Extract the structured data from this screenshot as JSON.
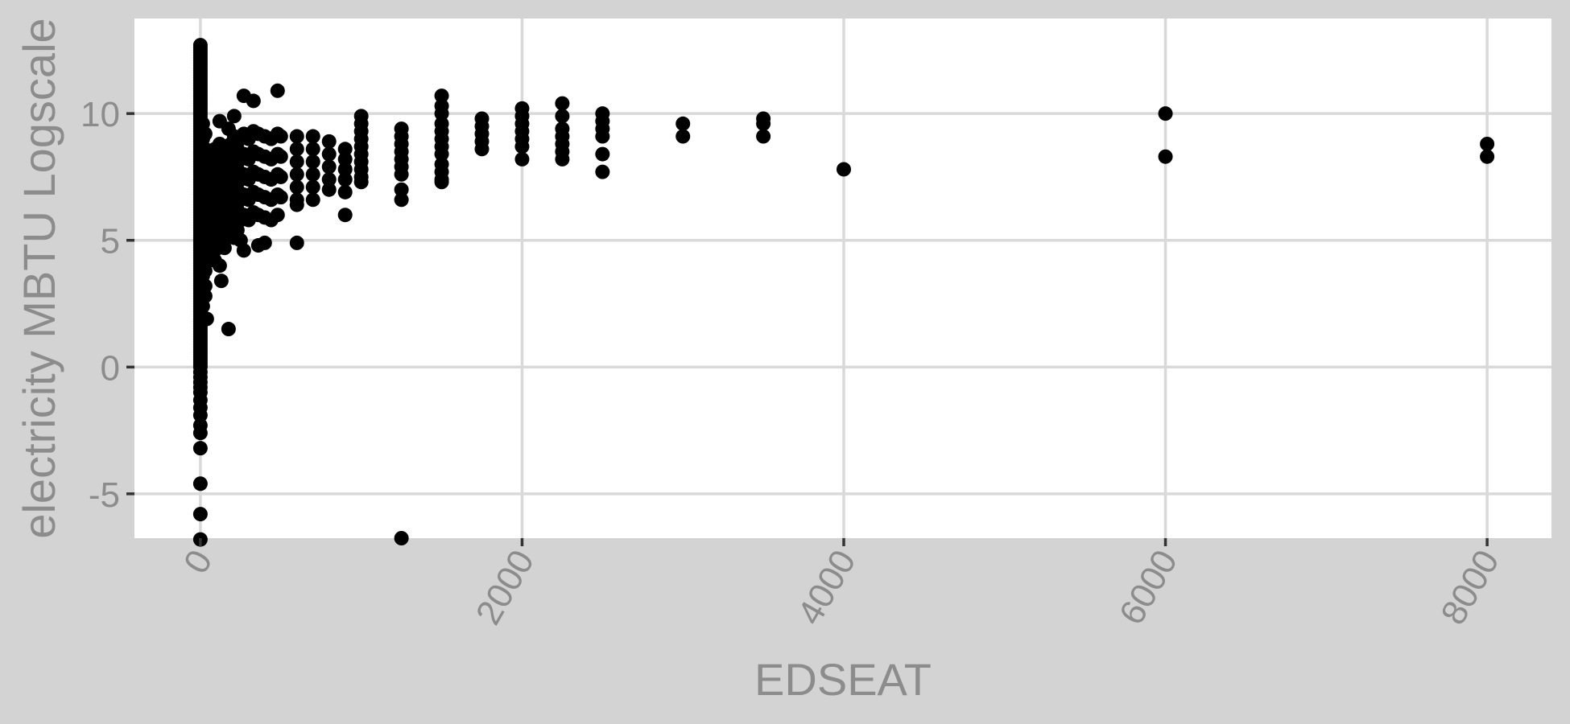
{
  "chart_data": {
    "type": "scatter",
    "title": "",
    "xlabel": "EDSEAT",
    "ylabel": "electricity MBTU Logscale",
    "xlim": [
      -410,
      8400
    ],
    "ylim": [
      -6.75,
      13.75
    ],
    "x_ticks": [
      0,
      2000,
      4000,
      6000,
      8000
    ],
    "y_ticks": [
      -5,
      0,
      5,
      10
    ],
    "grid": true,
    "legend": "none",
    "colors": {
      "panel": "#ffffff",
      "background": "#d3d3d3",
      "grid": "#d9d9d9",
      "points": "#000000",
      "text": "#8c8c8c"
    },
    "points": [
      [
        0,
        12.7
      ],
      [
        0,
        12.6
      ],
      [
        0,
        12.5
      ],
      [
        0,
        12.4
      ],
      [
        0,
        12.3
      ],
      [
        0,
        12.2
      ],
      [
        0,
        12.1
      ],
      [
        0,
        12.0
      ],
      [
        0,
        11.9
      ],
      [
        0,
        11.8
      ],
      [
        0,
        11.7
      ],
      [
        0,
        11.6
      ],
      [
        0,
        11.5
      ],
      [
        0,
        11.4
      ],
      [
        0,
        11.3
      ],
      [
        0,
        11.2
      ],
      [
        0,
        11.1
      ],
      [
        0,
        11.0
      ],
      [
        0,
        10.9
      ],
      [
        0,
        10.8
      ],
      [
        0,
        10.7
      ],
      [
        0,
        10.6
      ],
      [
        0,
        10.5
      ],
      [
        0,
        10.4
      ],
      [
        0,
        10.3
      ],
      [
        0,
        10.2
      ],
      [
        0,
        10.1
      ],
      [
        0,
        10.0
      ],
      [
        0,
        9.9
      ],
      [
        0,
        9.8
      ],
      [
        0,
        9.7
      ],
      [
        0,
        9.6
      ],
      [
        0,
        9.5
      ],
      [
        0,
        9.4
      ],
      [
        0,
        9.3
      ],
      [
        0,
        9.2
      ],
      [
        0,
        9.1
      ],
      [
        0,
        9.0
      ],
      [
        0,
        8.9
      ],
      [
        0,
        8.8
      ],
      [
        0,
        8.7
      ],
      [
        0,
        8.6
      ],
      [
        0,
        8.5
      ],
      [
        0,
        8.4
      ],
      [
        0,
        8.3
      ],
      [
        0,
        8.2
      ],
      [
        0,
        8.1
      ],
      [
        0,
        8.0
      ],
      [
        0,
        7.9
      ],
      [
        0,
        7.8
      ],
      [
        0,
        7.7
      ],
      [
        0,
        7.6
      ],
      [
        0,
        7.5
      ],
      [
        0,
        7.4
      ],
      [
        0,
        7.3
      ],
      [
        0,
        7.2
      ],
      [
        0,
        7.1
      ],
      [
        0,
        7.0
      ],
      [
        0,
        6.9
      ],
      [
        0,
        6.8
      ],
      [
        0,
        6.7
      ],
      [
        0,
        6.6
      ],
      [
        0,
        6.5
      ],
      [
        0,
        6.4
      ],
      [
        0,
        6.3
      ],
      [
        0,
        6.2
      ],
      [
        0,
        6.1
      ],
      [
        0,
        6.0
      ],
      [
        0,
        5.9
      ],
      [
        0,
        5.8
      ],
      [
        0,
        5.7
      ],
      [
        0,
        5.6
      ],
      [
        0,
        5.5
      ],
      [
        0,
        5.4
      ],
      [
        0,
        5.3
      ],
      [
        0,
        5.2
      ],
      [
        0,
        5.1
      ],
      [
        0,
        5.0
      ],
      [
        0,
        4.9
      ],
      [
        0,
        4.8
      ],
      [
        0,
        4.7
      ],
      [
        0,
        4.6
      ],
      [
        0,
        4.5
      ],
      [
        0,
        4.4
      ],
      [
        0,
        4.3
      ],
      [
        0,
        4.2
      ],
      [
        0,
        4.1
      ],
      [
        0,
        4.0
      ],
      [
        0,
        3.9
      ],
      [
        0,
        3.8
      ],
      [
        0,
        3.7
      ],
      [
        0,
        3.6
      ],
      [
        0,
        3.5
      ],
      [
        0,
        3.4
      ],
      [
        0,
        3.3
      ],
      [
        0,
        3.2
      ],
      [
        0,
        3.1
      ],
      [
        0,
        3.0
      ],
      [
        0,
        2.9
      ],
      [
        0,
        2.8
      ],
      [
        0,
        2.7
      ],
      [
        0,
        2.6
      ],
      [
        0,
        2.5
      ],
      [
        0,
        2.4
      ],
      [
        0,
        2.3
      ],
      [
        0,
        2.2
      ],
      [
        0,
        2.1
      ],
      [
        0,
        2.0
      ],
      [
        0,
        1.9
      ],
      [
        0,
        1.8
      ],
      [
        0,
        1.7
      ],
      [
        0,
        1.6
      ],
      [
        0,
        1.5
      ],
      [
        0,
        1.4
      ],
      [
        0,
        1.3
      ],
      [
        0,
        1.2
      ],
      [
        0,
        1.1
      ],
      [
        0,
        1.0
      ],
      [
        0,
        0.9
      ],
      [
        0,
        0.8
      ],
      [
        0,
        0.7
      ],
      [
        0,
        0.6
      ],
      [
        0,
        0.5
      ],
      [
        0,
        0.4
      ],
      [
        0,
        0.3
      ],
      [
        0,
        0.2
      ],
      [
        0,
        0.1
      ],
      [
        0,
        0.0
      ],
      [
        0,
        -0.2
      ],
      [
        0,
        -0.4
      ],
      [
        0,
        -0.6
      ],
      [
        0,
        -0.8
      ],
      [
        0,
        -1.0
      ],
      [
        0,
        -1.3
      ],
      [
        0,
        -1.6
      ],
      [
        0,
        -1.9
      ],
      [
        0,
        -2.3
      ],
      [
        0,
        -2.6
      ],
      [
        0,
        -3.2
      ],
      [
        0,
        -4.6
      ],
      [
        0,
        -5.8
      ],
      [
        0,
        -6.8
      ],
      [
        15,
        9.6
      ],
      [
        15,
        9.0
      ],
      [
        15,
        8.4
      ],
      [
        15,
        7.8
      ],
      [
        15,
        7.2
      ],
      [
        15,
        6.6
      ],
      [
        15,
        6.0
      ],
      [
        15,
        5.4
      ],
      [
        15,
        4.8
      ],
      [
        15,
        4.2
      ],
      [
        15,
        3.6
      ],
      [
        15,
        3.0
      ],
      [
        15,
        2.4
      ],
      [
        30,
        9.2
      ],
      [
        30,
        8.6
      ],
      [
        30,
        8.0
      ],
      [
        30,
        7.4
      ],
      [
        30,
        6.8
      ],
      [
        30,
        6.2
      ],
      [
        30,
        5.6
      ],
      [
        30,
        5.0
      ],
      [
        30,
        4.4
      ],
      [
        30,
        3.8
      ],
      [
        30,
        3.2
      ],
      [
        30,
        2.8
      ],
      [
        40,
        7.9
      ],
      [
        40,
        7.2
      ],
      [
        40,
        6.5
      ],
      [
        40,
        5.8
      ],
      [
        40,
        5.1
      ],
      [
        40,
        4.4
      ],
      [
        40,
        1.9
      ],
      [
        50,
        8.3
      ],
      [
        50,
        7.5
      ],
      [
        50,
        6.7
      ],
      [
        50,
        5.9
      ],
      [
        50,
        5.1
      ],
      [
        50,
        4.3
      ],
      [
        60,
        7.8
      ],
      [
        60,
        7.0
      ],
      [
        60,
        6.2
      ],
      [
        60,
        5.4
      ],
      [
        60,
        4.6
      ],
      [
        70,
        8.1
      ],
      [
        70,
        7.3
      ],
      [
        70,
        6.5
      ],
      [
        70,
        5.7
      ],
      [
        70,
        4.9
      ],
      [
        80,
        7.7
      ],
      [
        80,
        6.9
      ],
      [
        80,
        6.1
      ],
      [
        80,
        5.3
      ],
      [
        80,
        4.5
      ],
      [
        90,
        8.6
      ],
      [
        90,
        7.8
      ],
      [
        90,
        7.0
      ],
      [
        90,
        6.2
      ],
      [
        90,
        5.4
      ],
      [
        90,
        4.2
      ],
      [
        100,
        8.2
      ],
      [
        100,
        7.4
      ],
      [
        100,
        6.6
      ],
      [
        100,
        5.8
      ],
      [
        100,
        5.0
      ],
      [
        110,
        7.9
      ],
      [
        110,
        7.1
      ],
      [
        110,
        6.3
      ],
      [
        110,
        5.5
      ],
      [
        110,
        4.7
      ],
      [
        120,
        9.7
      ],
      [
        120,
        8.8
      ],
      [
        120,
        8.0
      ],
      [
        120,
        7.2
      ],
      [
        120,
        6.4
      ],
      [
        120,
        5.6
      ],
      [
        120,
        4.8
      ],
      [
        120,
        4.0
      ],
      [
        130,
        8.5
      ],
      [
        130,
        7.7
      ],
      [
        130,
        6.9
      ],
      [
        130,
        6.1
      ],
      [
        130,
        5.3
      ],
      [
        130,
        3.4
      ],
      [
        140,
        8.1
      ],
      [
        140,
        7.3
      ],
      [
        140,
        6.5
      ],
      [
        140,
        5.7
      ],
      [
        140,
        4.9
      ],
      [
        150,
        8.7
      ],
      [
        150,
        7.9
      ],
      [
        150,
        7.1
      ],
      [
        150,
        6.3
      ],
      [
        150,
        5.5
      ],
      [
        150,
        4.7
      ],
      [
        160,
        8.3
      ],
      [
        160,
        7.5
      ],
      [
        160,
        6.7
      ],
      [
        160,
        5.9
      ],
      [
        160,
        5.1
      ],
      [
        175,
        9.4
      ],
      [
        175,
        8.6
      ],
      [
        175,
        7.8
      ],
      [
        175,
        7.0
      ],
      [
        175,
        6.2
      ],
      [
        175,
        5.4
      ],
      [
        175,
        1.5
      ],
      [
        190,
        8.8
      ],
      [
        190,
        8.0
      ],
      [
        190,
        7.2
      ],
      [
        190,
        6.4
      ],
      [
        190,
        5.6
      ],
      [
        210,
        9.9
      ],
      [
        210,
        9.1
      ],
      [
        210,
        8.3
      ],
      [
        210,
        7.5
      ],
      [
        210,
        6.7
      ],
      [
        210,
        5.9
      ],
      [
        210,
        5.1
      ],
      [
        230,
        8.6
      ],
      [
        230,
        7.8
      ],
      [
        230,
        7.0
      ],
      [
        230,
        6.2
      ],
      [
        230,
        5.4
      ],
      [
        250,
        9.0
      ],
      [
        250,
        8.2
      ],
      [
        250,
        7.4
      ],
      [
        250,
        6.6
      ],
      [
        250,
        5.8
      ],
      [
        250,
        5.0
      ],
      [
        270,
        10.7
      ],
      [
        270,
        9.2
      ],
      [
        270,
        8.4
      ],
      [
        270,
        7.6
      ],
      [
        270,
        6.8
      ],
      [
        270,
        6.0
      ],
      [
        270,
        4.6
      ],
      [
        300,
        9.0
      ],
      [
        300,
        8.2
      ],
      [
        300,
        7.4
      ],
      [
        300,
        6.6
      ],
      [
        300,
        5.8
      ],
      [
        330,
        10.5
      ],
      [
        330,
        9.3
      ],
      [
        330,
        8.5
      ],
      [
        330,
        7.7
      ],
      [
        330,
        6.9
      ],
      [
        330,
        6.1
      ],
      [
        360,
        9.2
      ],
      [
        360,
        8.4
      ],
      [
        360,
        7.6
      ],
      [
        360,
        6.8
      ],
      [
        360,
        6.0
      ],
      [
        360,
        4.8
      ],
      [
        400,
        9.1
      ],
      [
        400,
        8.3
      ],
      [
        400,
        7.5
      ],
      [
        400,
        6.7
      ],
      [
        400,
        5.9
      ],
      [
        400,
        4.9
      ],
      [
        440,
        9.0
      ],
      [
        440,
        8.2
      ],
      [
        440,
        7.4
      ],
      [
        440,
        6.6
      ],
      [
        440,
        5.8
      ],
      [
        480,
        10.9
      ],
      [
        480,
        9.2
      ],
      [
        480,
        8.4
      ],
      [
        480,
        7.6
      ],
      [
        480,
        6.8
      ],
      [
        480,
        6.0
      ],
      [
        500,
        9.1
      ],
      [
        500,
        8.3
      ],
      [
        500,
        7.5
      ],
      [
        500,
        6.7
      ],
      [
        600,
        9.1
      ],
      [
        600,
        8.6
      ],
      [
        600,
        8.1
      ],
      [
        600,
        7.6
      ],
      [
        600,
        7.1
      ],
      [
        600,
        6.6
      ],
      [
        600,
        6.4
      ],
      [
        600,
        4.9
      ],
      [
        700,
        9.1
      ],
      [
        700,
        8.6
      ],
      [
        700,
        8.1
      ],
      [
        700,
        7.6
      ],
      [
        700,
        7.1
      ],
      [
        700,
        6.6
      ],
      [
        800,
        8.9
      ],
      [
        800,
        8.4
      ],
      [
        800,
        7.9
      ],
      [
        800,
        7.4
      ],
      [
        800,
        7.0
      ],
      [
        900,
        8.6
      ],
      [
        900,
        8.2
      ],
      [
        900,
        7.8
      ],
      [
        900,
        7.4
      ],
      [
        900,
        6.9
      ],
      [
        900,
        6.0
      ],
      [
        1000,
        9.9
      ],
      [
        1000,
        9.6
      ],
      [
        1000,
        9.3
      ],
      [
        1000,
        9.0
      ],
      [
        1000,
        8.7
      ],
      [
        1000,
        8.4
      ],
      [
        1000,
        8.1
      ],
      [
        1000,
        7.8
      ],
      [
        1000,
        7.5
      ],
      [
        1000,
        7.3
      ],
      [
        1250,
        9.4
      ],
      [
        1250,
        9.1
      ],
      [
        1250,
        8.8
      ],
      [
        1250,
        8.5
      ],
      [
        1250,
        8.2
      ],
      [
        1250,
        7.9
      ],
      [
        1250,
        7.6
      ],
      [
        1250,
        7.0
      ],
      [
        1250,
        6.6
      ],
      [
        1250,
        -6.75
      ],
      [
        1500,
        10.7
      ],
      [
        1500,
        10.3
      ],
      [
        1500,
        10.0
      ],
      [
        1500,
        9.6
      ],
      [
        1500,
        9.3
      ],
      [
        1500,
        9.0
      ],
      [
        1500,
        8.7
      ],
      [
        1500,
        8.4
      ],
      [
        1500,
        8.0
      ],
      [
        1500,
        7.7
      ],
      [
        1500,
        7.4
      ],
      [
        1500,
        7.3
      ],
      [
        1750,
        9.8
      ],
      [
        1750,
        9.5
      ],
      [
        1750,
        9.2
      ],
      [
        1750,
        8.9
      ],
      [
        1750,
        8.6
      ],
      [
        2000,
        10.2
      ],
      [
        2000,
        9.9
      ],
      [
        2000,
        9.6
      ],
      [
        2000,
        9.3
      ],
      [
        2000,
        9.0
      ],
      [
        2000,
        8.7
      ],
      [
        2000,
        8.2
      ],
      [
        2250,
        10.4
      ],
      [
        2250,
        9.9
      ],
      [
        2250,
        9.4
      ],
      [
        2250,
        9.1
      ],
      [
        2250,
        8.8
      ],
      [
        2250,
        8.5
      ],
      [
        2250,
        8.2
      ],
      [
        2500,
        10.0
      ],
      [
        2500,
        9.7
      ],
      [
        2500,
        9.4
      ],
      [
        2500,
        9.1
      ],
      [
        2500,
        8.4
      ],
      [
        2500,
        7.7
      ],
      [
        3000,
        9.6
      ],
      [
        3000,
        9.1
      ],
      [
        3500,
        9.8
      ],
      [
        3500,
        9.6
      ],
      [
        3500,
        9.1
      ],
      [
        4000,
        7.8
      ],
      [
        6000,
        10.0
      ],
      [
        6000,
        8.3
      ],
      [
        8000,
        8.8
      ],
      [
        8000,
        8.3
      ]
    ]
  }
}
